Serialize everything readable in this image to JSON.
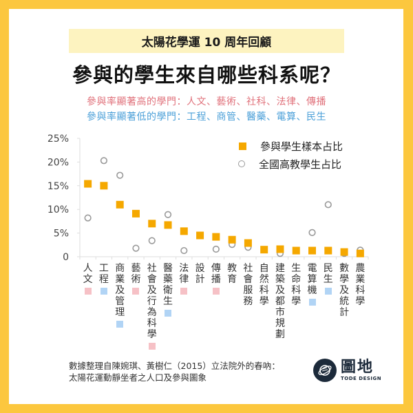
{
  "banner": "太陽花學運 10 周年回顧",
  "title": "參與的學生來自哪些科系呢？",
  "notes": {
    "high": "參與率顯著高的學門：人文、藝術、社科、法律、傳播",
    "low": "參與率顯著低的學門：工程、商管、醫藥、電算、民生"
  },
  "colors": {
    "sample": "#f5a800",
    "national": "#999999",
    "high": "#f6c1c6",
    "low": "#b1d4f5",
    "frame": "#fcc73e"
  },
  "chart_data": {
    "type": "scatter",
    "title": "參與的學生來自哪些科系呢？",
    "xlabel": "",
    "ylabel": "",
    "ylim": [
      0,
      25
    ],
    "yticks": [
      "0",
      "5%",
      "10%",
      "15%",
      "20%",
      "25%"
    ],
    "ytick_values": [
      0,
      5,
      10,
      15,
      20,
      25
    ],
    "grid": false,
    "legend_position": "top-right",
    "categories": [
      "人文",
      "工程",
      "商業及管理",
      "藝術",
      "社會及行為科學",
      "醫藥衛生",
      "法律",
      "設計",
      "傳播",
      "教育",
      "社會服務",
      "自然科學",
      "建築及都市規劃",
      "生命科學",
      "電算機",
      "民生",
      "數學及統計",
      "農業科學"
    ],
    "category_flags": [
      "high",
      "low",
      "low",
      "high",
      "high",
      "low",
      "high",
      "",
      "high",
      "",
      "",
      "",
      "",
      "",
      "low",
      "low",
      "",
      ""
    ],
    "series": [
      {
        "name": "參與學生樣本占比",
        "marker": "square",
        "values": [
          15.4,
          15.0,
          11.0,
          9.1,
          7.0,
          6.7,
          5.4,
          4.5,
          4.2,
          3.6,
          2.9,
          1.5,
          1.6,
          1.3,
          1.3,
          1.3,
          1.0,
          0.7
        ]
      },
      {
        "name": "全國高教學生占比",
        "marker": "circle",
        "values": [
          8.2,
          20.3,
          17.2,
          1.8,
          3.4,
          8.9,
          1.3,
          4.5,
          1.6,
          2.6,
          2.0,
          1.5,
          0.7,
          1.3,
          5.1,
          11.0,
          0.7,
          1.4
        ]
      }
    ]
  },
  "source": {
    "line1": "數據整理自陳婉琪、黃樹仁（2015）立法院外的春吶：",
    "line2": "太陽花運動靜坐者之人口及參與圖象"
  },
  "logo": {
    "main": "圖地",
    "sub": "TODE DESIGN"
  }
}
